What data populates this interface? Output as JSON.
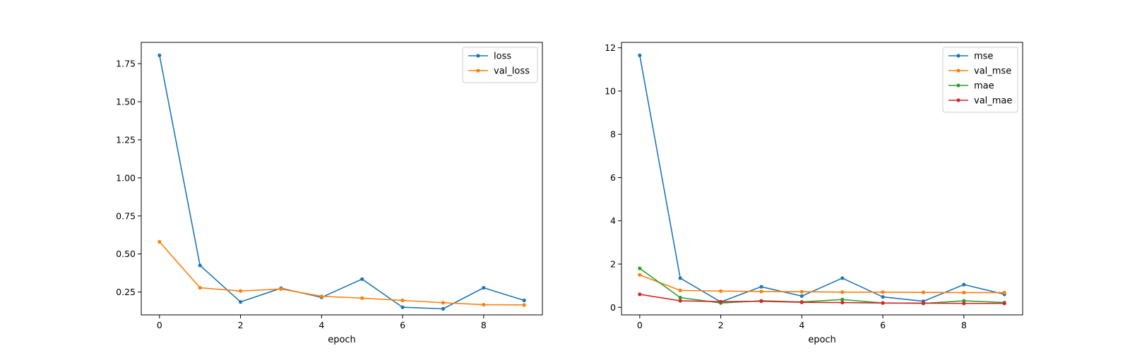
{
  "chart_data": [
    {
      "type": "line",
      "xlabel": "epoch",
      "ylabel": "",
      "xlim": [
        -0.45,
        9.45
      ],
      "ylim": [
        0.1,
        1.89
      ],
      "xticks": [
        0,
        2,
        4,
        6,
        8
      ],
      "yticks": [
        0.25,
        0.5,
        0.75,
        1.0,
        1.25,
        1.5,
        1.75
      ],
      "ytick_decimals": 2,
      "grid": false,
      "legend_position": "top-right",
      "x": [
        0,
        1,
        2,
        3,
        4,
        5,
        6,
        7,
        8,
        9
      ],
      "series": [
        {
          "name": "loss",
          "color": "#1f77b4",
          "values": [
            1.805,
            0.425,
            0.185,
            0.275,
            0.215,
            0.335,
            0.15,
            0.14,
            0.278,
            0.195
          ]
        },
        {
          "name": "val_loss",
          "color": "#ff7f0e",
          "values": [
            0.58,
            0.278,
            0.257,
            0.27,
            0.222,
            0.21,
            0.195,
            0.18,
            0.167,
            0.165
          ]
        }
      ]
    },
    {
      "type": "line",
      "xlabel": "epoch",
      "ylabel": "",
      "xlim": [
        -0.45,
        9.45
      ],
      "ylim": [
        -0.35,
        12.25
      ],
      "xticks": [
        0,
        2,
        4,
        6,
        8
      ],
      "yticks": [
        0,
        2,
        4,
        6,
        8,
        10,
        12
      ],
      "ytick_decimals": 0,
      "grid": false,
      "legend_position": "top-right",
      "x": [
        0,
        1,
        2,
        3,
        4,
        5,
        6,
        7,
        8,
        9
      ],
      "series": [
        {
          "name": "mse",
          "color": "#1f77b4",
          "values": [
            11.65,
            1.35,
            0.25,
            0.95,
            0.52,
            1.35,
            0.48,
            0.28,
            1.05,
            0.6
          ]
        },
        {
          "name": "val_mse",
          "color": "#ff7f0e",
          "values": [
            1.5,
            0.78,
            0.75,
            0.73,
            0.72,
            0.7,
            0.7,
            0.69,
            0.68,
            0.68
          ]
        },
        {
          "name": "mae",
          "color": "#2ca02c",
          "values": [
            1.8,
            0.45,
            0.2,
            0.3,
            0.25,
            0.36,
            0.2,
            0.18,
            0.3,
            0.22
          ]
        },
        {
          "name": "val_mae",
          "color": "#d62728",
          "values": [
            0.6,
            0.3,
            0.26,
            0.28,
            0.23,
            0.22,
            0.2,
            0.19,
            0.18,
            0.18
          ]
        }
      ]
    }
  ]
}
